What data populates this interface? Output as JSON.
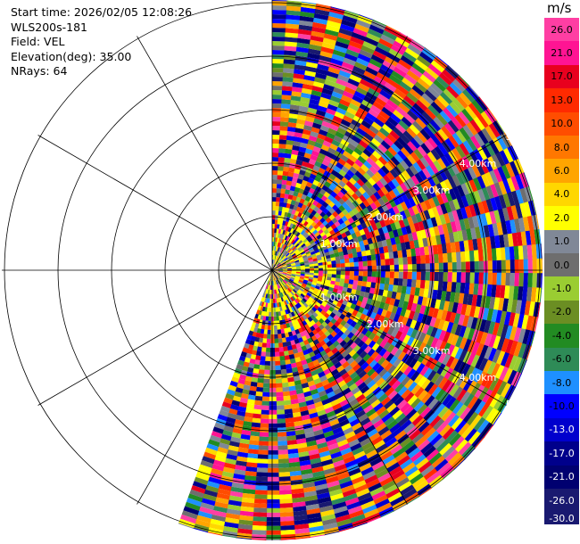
{
  "info": {
    "start_time": "Start time: 2026/02/05 12:08:26",
    "instrument": "WLS200s-181",
    "field": "Field: VEL",
    "elevation": "Elevation(deg): 35.00",
    "nrays": "NRays: 64"
  },
  "colorbar": {
    "unit": "m/s",
    "entries": [
      {
        "label": "26.0",
        "color": "#ff3ea3",
        "light": false
      },
      {
        "label": "21.0",
        "color": "#ff1493",
        "light": false
      },
      {
        "label": "17.0",
        "color": "#e8001e",
        "light": false
      },
      {
        "label": "13.0",
        "color": "#ff2a00",
        "light": false
      },
      {
        "label": "10.0",
        "color": "#ff4d00",
        "light": false
      },
      {
        "label": "8.0",
        "color": "#ff7700",
        "light": false
      },
      {
        "label": "6.0",
        "color": "#ffa500",
        "light": false
      },
      {
        "label": "4.0",
        "color": "#ffd700",
        "light": false
      },
      {
        "label": "2.0",
        "color": "#ffff00",
        "light": false
      },
      {
        "label": "1.0",
        "color": "#808897",
        "light": false
      },
      {
        "label": "0.0",
        "color": "#6e6e6e",
        "light": false
      },
      {
        "label": "-1.0",
        "color": "#9acd32",
        "light": false
      },
      {
        "label": "-2.0",
        "color": "#6b8e23",
        "light": false
      },
      {
        "label": "-4.0",
        "color": "#228b22",
        "light": false
      },
      {
        "label": "-6.0",
        "color": "#2e8b57",
        "light": false
      },
      {
        "label": "-8.0",
        "color": "#1e90ff",
        "light": false
      },
      {
        "label": "-10.0",
        "color": "#0000ff",
        "light": false
      },
      {
        "label": "-13.0",
        "color": "#0000cd",
        "light": true
      },
      {
        "label": "-17.0",
        "color": "#00008b",
        "light": true
      },
      {
        "label": "-21.0",
        "color": "#000070",
        "light": true
      },
      {
        "label": "-26.0",
        "color": "#191970",
        "light": true
      }
    ],
    "bottom_label": "-30.0"
  },
  "chart_data": {
    "type": "heatmap",
    "description_units": "radial velocity (m/s), polar PPI",
    "field": "VEL",
    "nrays": 64,
    "elevation_deg": 35.0,
    "ring_labels": [
      "1.00km",
      "2.00km",
      "3.00km",
      "4.00km",
      "5.00km"
    ],
    "azimuth_coverage_deg": [
      0,
      200
    ],
    "value_range": [
      -30.0,
      26.0
    ]
  }
}
